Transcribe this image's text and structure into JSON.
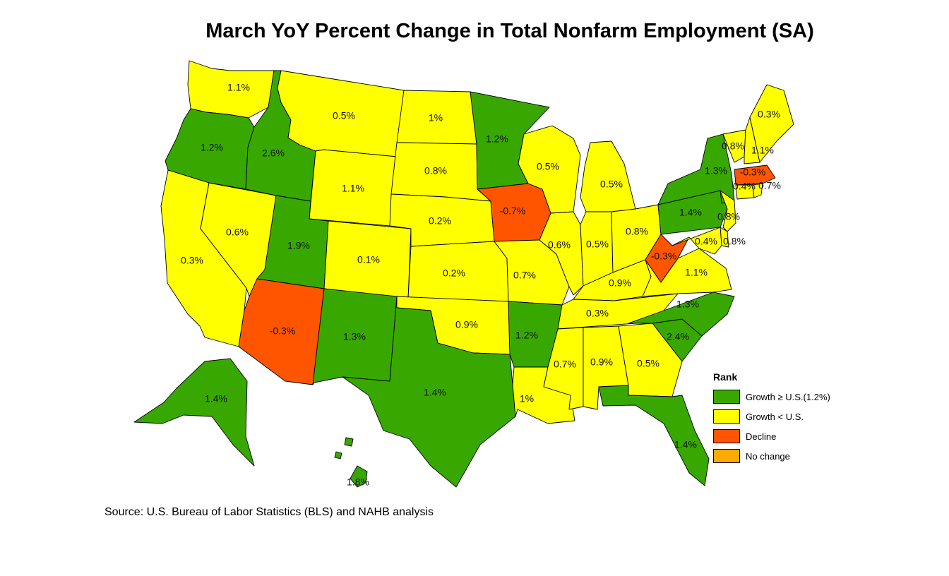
{
  "title": "March YoY Percent Change in Total Nonfarm Employment (SA)",
  "source": "Source: U.S. Bureau of Labor Statistics (BLS) and NAHB analysis",
  "colors": {
    "growth_ge_us": "#38a800",
    "growth_lt_us": "#ffff00",
    "decline": "#ff5500",
    "no_change": "#ffaa00"
  },
  "legend": {
    "title": "Rank",
    "items": [
      {
        "key": "growth_ge_us",
        "label": "Growth ≥ U.S.(1.2%)"
      },
      {
        "key": "growth_lt_us",
        "label": "Growth < U.S."
      },
      {
        "key": "decline",
        "label": "Decline"
      },
      {
        "key": "no_change",
        "label": "No change"
      }
    ]
  },
  "us_rate": 1.2,
  "states": [
    {
      "code": "WA",
      "value": 1.1,
      "label": "1.1%",
      "category": "growth_lt_us"
    },
    {
      "code": "OR",
      "value": 1.2,
      "label": "1.2%",
      "category": "growth_ge_us"
    },
    {
      "code": "CA",
      "value": 0.3,
      "label": "0.3%",
      "category": "growth_lt_us"
    },
    {
      "code": "NV",
      "value": 0.6,
      "label": "0.6%",
      "category": "growth_lt_us"
    },
    {
      "code": "ID",
      "value": 2.6,
      "label": "2.6%",
      "category": "growth_ge_us"
    },
    {
      "code": "MT",
      "value": 0.5,
      "label": "0.5%",
      "category": "growth_lt_us"
    },
    {
      "code": "WY",
      "value": 1.1,
      "label": "1.1%",
      "category": "growth_lt_us"
    },
    {
      "code": "UT",
      "value": 1.9,
      "label": "1.9%",
      "category": "growth_ge_us"
    },
    {
      "code": "AZ",
      "value": -0.3,
      "label": "-0.3%",
      "category": "decline"
    },
    {
      "code": "CO",
      "value": 0.1,
      "label": "0.1%",
      "category": "growth_lt_us"
    },
    {
      "code": "NM",
      "value": 1.3,
      "label": "1.3%",
      "category": "growth_ge_us"
    },
    {
      "code": "ND",
      "value": 1,
      "label": "1%",
      "category": "growth_lt_us"
    },
    {
      "code": "SD",
      "value": 0.8,
      "label": "0.8%",
      "category": "growth_lt_us"
    },
    {
      "code": "NE",
      "value": 0.2,
      "label": "0.2%",
      "category": "growth_lt_us"
    },
    {
      "code": "KS",
      "value": 0.2,
      "label": "0.2%",
      "category": "growth_lt_us"
    },
    {
      "code": "OK",
      "value": 0.9,
      "label": "0.9%",
      "category": "growth_lt_us"
    },
    {
      "code": "TX",
      "value": 1.4,
      "label": "1.4%",
      "category": "growth_ge_us"
    },
    {
      "code": "MN",
      "value": 1.2,
      "label": "1.2%",
      "category": "growth_ge_us"
    },
    {
      "code": "IA",
      "value": -0.7,
      "label": "-0.7%",
      "category": "decline"
    },
    {
      "code": "MO",
      "value": 0.7,
      "label": "0.7%",
      "category": "growth_lt_us"
    },
    {
      "code": "AR",
      "value": 1.2,
      "label": "1.2%",
      "category": "growth_ge_us"
    },
    {
      "code": "LA",
      "value": 1,
      "label": "1%",
      "category": "growth_lt_us"
    },
    {
      "code": "WI",
      "value": 0.5,
      "label": "0.5%",
      "category": "growth_lt_us"
    },
    {
      "code": "IL",
      "value": 0.6,
      "label": "0.6%",
      "category": "growth_lt_us"
    },
    {
      "code": "MI",
      "value": 0.5,
      "label": "0.5%",
      "category": "growth_lt_us"
    },
    {
      "code": "IN",
      "value": 0.5,
      "label": "0.5%",
      "category": "growth_lt_us"
    },
    {
      "code": "OH",
      "value": 0.8,
      "label": "0.8%",
      "category": "growth_lt_us"
    },
    {
      "code": "KY",
      "value": 0.9,
      "label": "0.9%",
      "category": "growth_lt_us"
    },
    {
      "code": "TN",
      "value": 0.3,
      "label": "0.3%",
      "category": "growth_lt_us"
    },
    {
      "code": "MS",
      "value": 0.7,
      "label": "0.7%",
      "category": "growth_lt_us"
    },
    {
      "code": "AL",
      "value": 0.9,
      "label": "0.9%",
      "category": "growth_lt_us"
    },
    {
      "code": "GA",
      "value": 0.5,
      "label": "0.5%",
      "category": "growth_lt_us"
    },
    {
      "code": "FL",
      "value": 1.4,
      "label": "1.4%",
      "category": "growth_ge_us"
    },
    {
      "code": "SC",
      "value": 2.4,
      "label": "2.4%",
      "category": "growth_ge_us"
    },
    {
      "code": "NC",
      "value": 1.3,
      "label": "1.3%",
      "category": "growth_ge_us"
    },
    {
      "code": "VA",
      "value": 1.1,
      "label": "1.1%",
      "category": "growth_lt_us"
    },
    {
      "code": "WV",
      "value": -0.3,
      "label": "-0.3%",
      "category": "decline"
    },
    {
      "code": "PA",
      "value": 1.4,
      "label": "1.4%",
      "category": "growth_ge_us"
    },
    {
      "code": "NY",
      "value": 1.3,
      "label": "1.3%",
      "category": "growth_ge_us"
    },
    {
      "code": "NJ",
      "value": 0.8,
      "label": "0.8%",
      "category": "growth_lt_us"
    },
    {
      "code": "DE",
      "value": 0.8,
      "label": "0.8%",
      "category": "growth_lt_us"
    },
    {
      "code": "MD",
      "value": 0.4,
      "label": "0.4%",
      "category": "growth_lt_us"
    },
    {
      "code": "VT",
      "value": 0.8,
      "label": "0.8%",
      "category": "growth_lt_us"
    },
    {
      "code": "NH",
      "value": 1.1,
      "label": "1.1%",
      "category": "growth_lt_us"
    },
    {
      "code": "ME",
      "value": 0.3,
      "label": "0.3%",
      "category": "growth_lt_us"
    },
    {
      "code": "MA",
      "value": -0.3,
      "label": "-0.3%",
      "category": "decline"
    },
    {
      "code": "CT",
      "value": 0.4,
      "label": "0.4%",
      "category": "growth_lt_us"
    },
    {
      "code": "RI",
      "value": 0.7,
      "label": "0.7%",
      "category": "growth_lt_us"
    },
    {
      "code": "AK",
      "value": 1.4,
      "label": "1.4%",
      "category": "growth_ge_us"
    },
    {
      "code": "HI",
      "value": 1.8,
      "label": "1.8%",
      "category": "growth_ge_us"
    }
  ]
}
